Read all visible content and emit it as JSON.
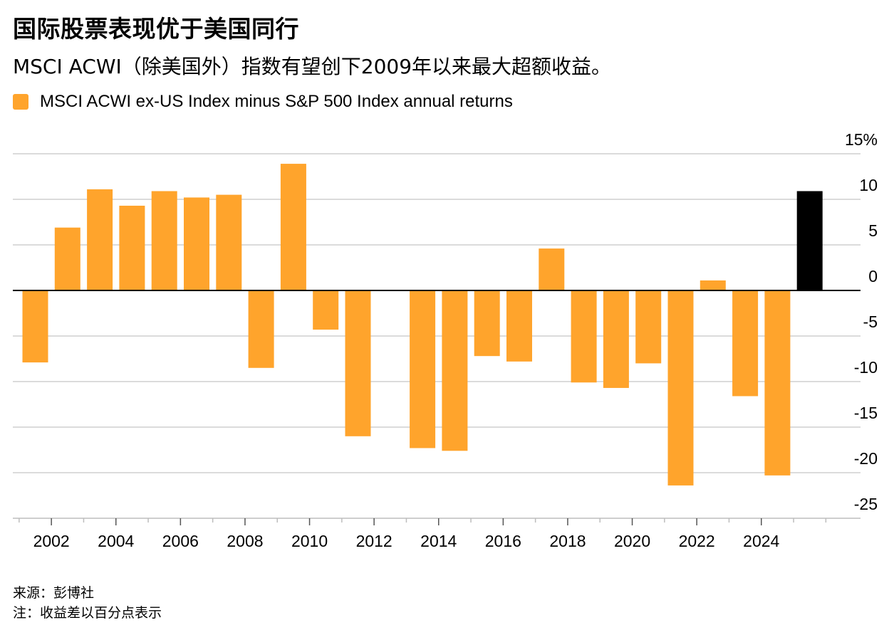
{
  "header": {
    "title": "国际股票表现优于美国同行",
    "subtitle": "MSCI ACWI（除美国外）指数有望创下2009年以来最大超额收益。"
  },
  "legend": {
    "label": "MSCI ACWI ex-US Index minus S&P 500 Index annual returns",
    "color": "#FFA42C"
  },
  "footer": {
    "source": "来源：彭博社",
    "note": "注：收益差以百分点表示"
  },
  "chart_data": {
    "type": "bar",
    "title": "国际股票表现优于美国同行",
    "series_name": "MSCI ACWI ex-US Index minus S&P 500 Index annual returns",
    "categories": [
      "2001",
      "2002",
      "2003",
      "2004",
      "2005",
      "2006",
      "2007",
      "2008",
      "2009",
      "2010",
      "2011",
      "2012",
      "2013",
      "2014",
      "2015",
      "2016",
      "2017",
      "2018",
      "2019",
      "2020",
      "2021",
      "2022",
      "2023",
      "2024",
      "2025"
    ],
    "values": [
      -7.9,
      6.9,
      11.1,
      9.3,
      10.9,
      10.2,
      10.5,
      -8.5,
      13.9,
      -4.3,
      -16.0,
      0.0,
      -17.3,
      -17.6,
      -7.2,
      -7.8,
      4.6,
      -10.1,
      -10.7,
      -8.0,
      -21.4,
      1.1,
      -11.6,
      -20.3,
      10.9
    ],
    "bar_colors": {
      "default": "#FFA42C",
      "highlight": "#000000"
    },
    "highlight_index": 24,
    "y_ticks": [
      "15%",
      "10",
      "5",
      "0",
      "-5",
      "-10",
      "-15",
      "-20",
      "-25"
    ],
    "y_tick_values": [
      15,
      10,
      5,
      0,
      -5,
      -10,
      -15,
      -20,
      -25
    ],
    "x_tick_labels": [
      "2002",
      "2004",
      "2006",
      "2008",
      "2010",
      "2012",
      "2014",
      "2016",
      "2018",
      "2020",
      "2022",
      "2024"
    ],
    "ylim": [
      -25,
      15
    ],
    "grid": true,
    "xlabel": "",
    "ylabel": ""
  }
}
